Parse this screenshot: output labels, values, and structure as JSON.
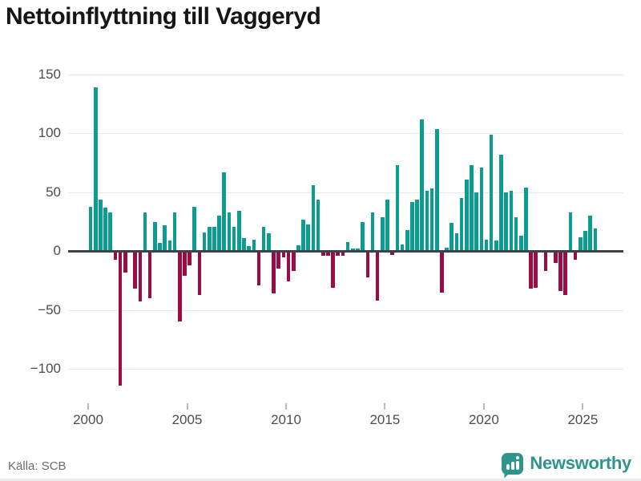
{
  "title": "Nettoinflyttning till Vaggeryd",
  "source": "Källa: SCB",
  "brand": {
    "name": "Newsworthy"
  },
  "colors": {
    "positive": "#0b9c92",
    "negative": "#9b0c44",
    "grid": "#e8e8e8",
    "zero_line": "#3b4248",
    "axis_text": "#4d4d4d",
    "title_text": "#161616",
    "source_text": "#6b6b6b",
    "brand_teal": "#2f958c"
  },
  "chart_data": {
    "type": "bar",
    "title": "Nettoinflyttning till Vaggeryd",
    "frequency": "quarterly",
    "start_period": "2000-Q1",
    "end_period": "2025-Q3",
    "grid": "on",
    "legend": "none",
    "ylim": [
      -120,
      155
    ],
    "y_ticks": [
      150,
      100,
      50,
      0,
      -50,
      -100
    ],
    "y_tick_labels": [
      "150",
      "100",
      "50",
      "0",
      "−50",
      "−100"
    ],
    "x_tick_labels": [
      "2000",
      "2005",
      "2010",
      "2015",
      "2020",
      "2025"
    ],
    "series": [
      {
        "name": "Nettoinflyttning",
        "values": [
          38,
          139,
          44,
          37,
          33,
          -7,
          -114,
          -18,
          0,
          -32,
          -43,
          33,
          -40,
          25,
          7,
          22,
          9,
          33,
          -60,
          -21,
          -12,
          38,
          -37,
          16,
          21,
          21,
          30,
          67,
          33,
          21,
          34,
          11,
          4,
          10,
          -29,
          21,
          15,
          -36,
          -15,
          -5,
          -26,
          -17,
          5,
          27,
          23,
          56,
          44,
          -4,
          -4,
          -31,
          -4,
          -4,
          8,
          2,
          2,
          25,
          -22,
          33,
          -42,
          29,
          44,
          -3,
          73,
          6,
          18,
          42,
          44,
          112,
          51,
          53,
          104,
          -35,
          3,
          24,
          15,
          45,
          61,
          73,
          50,
          71,
          10,
          99,
          9,
          82,
          50,
          51,
          29,
          13,
          54,
          -32,
          -31,
          0,
          -17,
          0,
          -10,
          -34,
          -37,
          33,
          -7,
          12,
          17,
          30,
          19
        ]
      }
    ]
  }
}
